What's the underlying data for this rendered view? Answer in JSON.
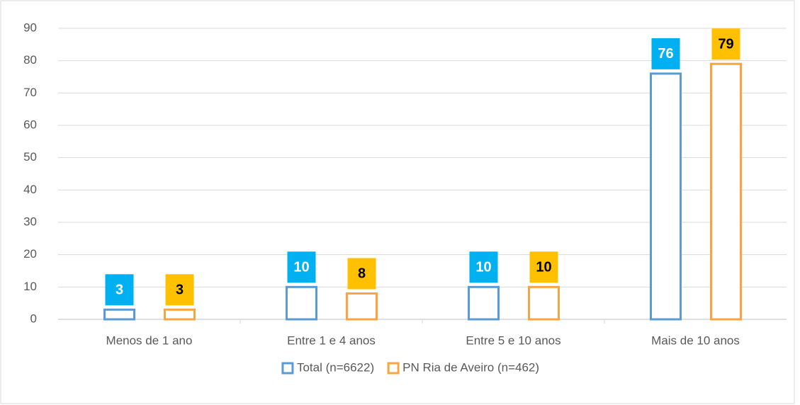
{
  "chart_data": {
    "type": "bar",
    "categories": [
      "Menos de 1 ano",
      "Entre 1 e 4 anos",
      "Entre 5 e 10 anos",
      "Mais de 10 anos"
    ],
    "series": [
      {
        "name": "Total (n=6622)",
        "color": "#5b9bd5",
        "label_color": "#00b0f0",
        "label_text_color": "#ffffff",
        "values": [
          3,
          10,
          10,
          76
        ]
      },
      {
        "name": "PN Ria de Aveiro (n=462)",
        "color": "#f9a443",
        "label_color": "#ffc000",
        "label_text_color": "#000000",
        "values": [
          3,
          8,
          10,
          79
        ]
      }
    ],
    "ylim": [
      0,
      90
    ],
    "yticks": [
      0,
      10,
      20,
      30,
      40,
      50,
      60,
      70,
      80,
      90
    ],
    "grid": true,
    "legend": "bottom"
  }
}
